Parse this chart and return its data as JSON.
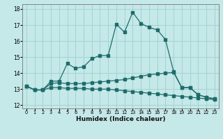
{
  "xlabel": "Humidex (Indice chaleur)",
  "xlim": [
    -0.5,
    23.5
  ],
  "ylim": [
    11.8,
    18.3
  ],
  "yticks": [
    12,
    13,
    14,
    15,
    16,
    17,
    18
  ],
  "xticks": [
    0,
    1,
    2,
    3,
    4,
    5,
    6,
    7,
    8,
    9,
    10,
    11,
    12,
    13,
    14,
    15,
    16,
    17,
    18,
    19,
    20,
    21,
    22,
    23
  ],
  "bg_color": "#c5e8e8",
  "grid_color": "#9dd0d0",
  "line_color": "#1e6b6b",
  "line1": [
    13.2,
    12.95,
    12.95,
    13.5,
    13.5,
    14.6,
    14.3,
    14.4,
    14.9,
    15.1,
    15.1,
    17.05,
    16.55,
    17.8,
    17.1,
    16.85,
    16.7,
    16.1,
    14.1,
    13.1,
    13.1,
    12.65,
    12.5,
    12.4
  ],
  "line2": [
    13.2,
    12.95,
    12.95,
    13.35,
    13.4,
    13.35,
    13.35,
    13.35,
    13.4,
    13.45,
    13.5,
    13.55,
    13.6,
    13.7,
    13.8,
    13.9,
    13.95,
    14.0,
    14.05,
    13.1,
    13.1,
    12.65,
    12.5,
    12.4
  ],
  "line3": [
    13.2,
    12.95,
    12.95,
    13.1,
    13.1,
    13.05,
    13.05,
    13.05,
    13.0,
    13.0,
    13.0,
    12.95,
    12.9,
    12.85,
    12.8,
    12.75,
    12.7,
    12.65,
    12.6,
    12.55,
    12.5,
    12.45,
    12.4,
    12.35
  ]
}
